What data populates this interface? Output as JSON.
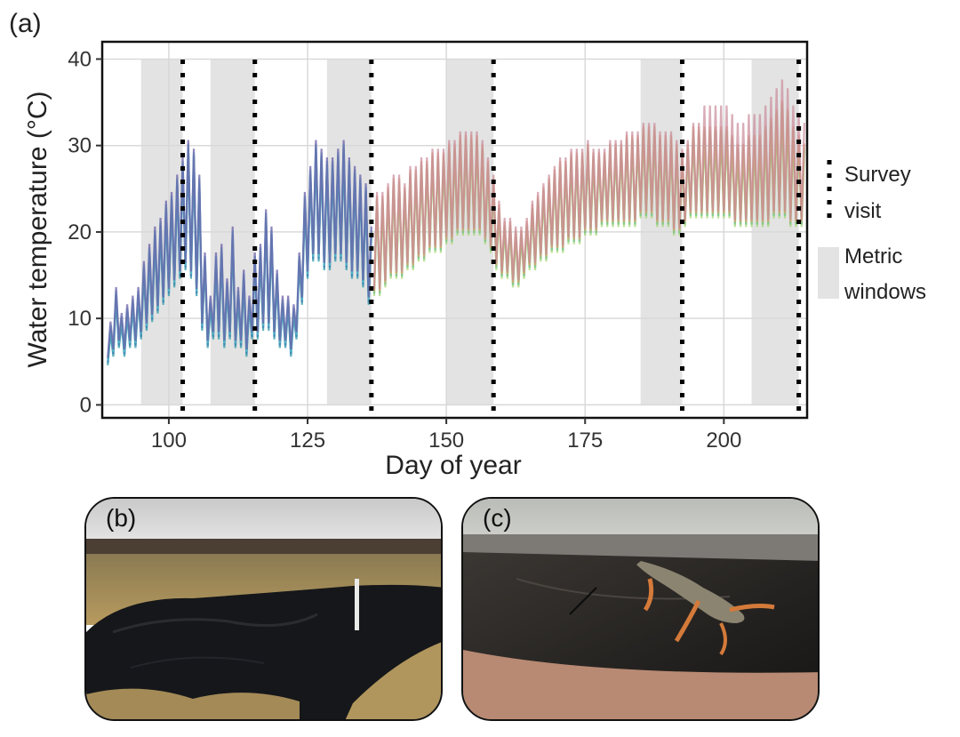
{
  "figure": {
    "panel_a_label": "(a)",
    "panel_b_label": "(b)",
    "panel_c_label": "(c)"
  },
  "photos": {
    "b_icon": "pond-photo",
    "c_icon": "salamander-photo"
  },
  "chart_data": {
    "type": "line",
    "xlabel": "Day of year",
    "ylabel": "Water temperature (°C)",
    "xlim": [
      88,
      215
    ],
    "ylim": [
      -1.5,
      42
    ],
    "x_ticks": [
      100,
      125,
      150,
      175,
      200
    ],
    "y_ticks": [
      0,
      10,
      20,
      30,
      40
    ],
    "grid": true,
    "legend_position": "right",
    "legend": {
      "survey_line1": "Survey",
      "survey_line2": "visit",
      "windows_line1": "Metric",
      "windows_line2": "windows"
    },
    "survey_visits": [
      102.5,
      115.5,
      136.5,
      158.5,
      192.5,
      213.5
    ],
    "metric_windows": [
      [
        95,
        102.5
      ],
      [
        107.5,
        115.5
      ],
      [
        128.5,
        136.5
      ],
      [
        150,
        158.5
      ],
      [
        185,
        192.5
      ],
      [
        205,
        213.5
      ]
    ],
    "colors": {
      "window_fill": "#e3e3e3",
      "survey_line": "#000000",
      "series_early": [
        "#2b9aa6",
        "#3c7fb5",
        "#58c4c9",
        "#6a5fa8"
      ],
      "series_late": [
        "#9fd46a",
        "#6cc08a",
        "#e6a070",
        "#c98a9a"
      ]
    },
    "mean_series": {
      "x": [
        89,
        90,
        91,
        92,
        93,
        94,
        95,
        96,
        97,
        98,
        99,
        100,
        101,
        102,
        103,
        104,
        105,
        106,
        107,
        108,
        109,
        110,
        111,
        112,
        113,
        114,
        115,
        116,
        117,
        118,
        119,
        120,
        121,
        122,
        123,
        124,
        125,
        126,
        127,
        128,
        129,
        130,
        131,
        132,
        133,
        134,
        135,
        136,
        137,
        138,
        139,
        140,
        141,
        142,
        143,
        144,
        145,
        146,
        147,
        148,
        149,
        150,
        151,
        152,
        153,
        154,
        155,
        156,
        157,
        158,
        159,
        160,
        161,
        162,
        163,
        164,
        165,
        166,
        167,
        168,
        169,
        170,
        171,
        172,
        173,
        174,
        175,
        176,
        177,
        178,
        179,
        180,
        181,
        182,
        183,
        184,
        185,
        186,
        187,
        188,
        189,
        190,
        191,
        192,
        193,
        194,
        195,
        196,
        197,
        198,
        199,
        200,
        201,
        202,
        203,
        204,
        205,
        206,
        207,
        208,
        209,
        210,
        211,
        212,
        213,
        214
      ],
      "low": [
        5,
        6,
        7,
        6,
        7,
        7,
        8,
        9,
        10,
        11,
        12,
        13,
        14,
        15,
        16,
        15,
        13,
        9,
        7,
        8,
        8,
        7,
        8,
        7,
        7,
        6,
        8,
        8,
        9,
        9,
        8,
        7,
        7,
        6,
        8,
        12,
        15,
        17,
        17,
        16,
        16,
        17,
        17,
        16,
        15,
        15,
        14,
        12,
        13,
        13,
        14,
        15,
        15,
        15,
        16,
        16,
        17,
        17,
        18,
        18,
        18,
        19,
        19,
        20,
        20,
        20,
        20,
        20,
        19,
        18,
        16,
        15,
        15,
        14,
        14,
        15,
        16,
        16,
        17,
        17,
        18,
        18,
        18,
        19,
        19,
        19,
        20,
        20,
        20,
        21,
        21,
        21,
        21,
        21,
        21,
        21,
        22,
        22,
        22,
        21,
        21,
        21,
        20,
        20,
        21,
        22,
        22,
        22,
        22,
        22,
        22,
        22,
        22,
        21,
        21,
        21,
        21,
        21,
        21,
        21,
        22,
        22,
        22,
        21,
        21,
        21
      ],
      "high": [
        9,
        13,
        10,
        11,
        12,
        13,
        16,
        18,
        20,
        21,
        23,
        24,
        26,
        28,
        30,
        29,
        26,
        17,
        12,
        17,
        18,
        14,
        20,
        13,
        15,
        12,
        17,
        18,
        22,
        20,
        15,
        12,
        12,
        11,
        17,
        24,
        27,
        30,
        29,
        28,
        28,
        29,
        30,
        28,
        27,
        26,
        25,
        20,
        24,
        24,
        25,
        26,
        26,
        25,
        27,
        27,
        28,
        28,
        29,
        29,
        29,
        30,
        30,
        31,
        31,
        31,
        31,
        30,
        28,
        26,
        23,
        21,
        21,
        20,
        20,
        21,
        23,
        24,
        25,
        26,
        27,
        28,
        28,
        29,
        29,
        29,
        30,
        29,
        29,
        29,
        30,
        30,
        30,
        31,
        31,
        31,
        32,
        32,
        32,
        31,
        31,
        31,
        30,
        29,
        30,
        32,
        32,
        32,
        32,
        32,
        32,
        32,
        31,
        30,
        30,
        31,
        31,
        31,
        32,
        33,
        34,
        35,
        34,
        32,
        31,
        30
      ]
    }
  }
}
